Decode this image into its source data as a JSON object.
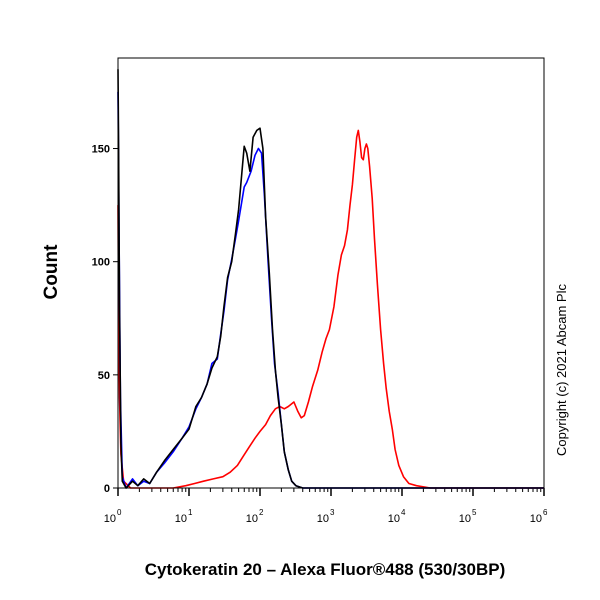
{
  "chart_data": {
    "type": "line",
    "xscale": "log",
    "xlim": [
      1,
      1000000
    ],
    "ylim": [
      0,
      190
    ],
    "xlabel": "Cytokeratin 20 – Alexa Fluor®488 (530/30BP)",
    "ylabel": "Count",
    "yticks": [
      0,
      50,
      100,
      150
    ],
    "xticks": [
      {
        "base": "10",
        "exp": "0"
      },
      {
        "base": "10",
        "exp": "1"
      },
      {
        "base": "10",
        "exp": "2"
      },
      {
        "base": "10",
        "exp": "3"
      },
      {
        "base": "10",
        "exp": "4"
      },
      {
        "base": "10",
        "exp": "5"
      },
      {
        "base": "10",
        "exp": "6"
      }
    ],
    "annotation": "Copyright (c) 2021 Abcam Plc",
    "series": [
      {
        "color": "#000000",
        "points": [
          [
            1,
            185
          ],
          [
            1.02,
            150
          ],
          [
            1.05,
            80
          ],
          [
            1.1,
            20
          ],
          [
            1.15,
            3
          ],
          [
            1.3,
            0
          ],
          [
            1.6,
            3
          ],
          [
            1.9,
            1
          ],
          [
            2.3,
            4
          ],
          [
            2.8,
            2
          ],
          [
            3.5,
            7
          ],
          [
            4.5,
            12
          ],
          [
            6,
            17
          ],
          [
            8,
            22
          ],
          [
            10,
            26
          ],
          [
            12.5,
            36
          ],
          [
            15,
            40
          ],
          [
            18,
            46
          ],
          [
            21,
            53
          ],
          [
            25,
            58
          ],
          [
            28,
            67
          ],
          [
            31,
            80
          ],
          [
            35,
            93
          ],
          [
            40,
            100
          ],
          [
            45,
            112
          ],
          [
            50,
            123
          ],
          [
            55,
            138
          ],
          [
            60,
            151
          ],
          [
            65,
            148
          ],
          [
            72,
            140
          ],
          [
            80,
            155
          ],
          [
            90,
            158
          ],
          [
            100,
            159
          ],
          [
            110,
            150
          ],
          [
            120,
            120
          ],
          [
            135,
            95
          ],
          [
            150,
            70
          ],
          [
            165,
            52
          ],
          [
            180,
            40
          ],
          [
            200,
            28
          ],
          [
            220,
            16
          ],
          [
            250,
            8
          ],
          [
            280,
            3
          ],
          [
            320,
            1
          ],
          [
            400,
            0
          ],
          [
            1000000,
            0
          ]
        ]
      },
      {
        "color": "#0000ff",
        "points": [
          [
            1,
            175
          ],
          [
            1.03,
            120
          ],
          [
            1.08,
            40
          ],
          [
            1.15,
            5
          ],
          [
            1.3,
            0
          ],
          [
            1.6,
            4
          ],
          [
            1.9,
            1
          ],
          [
            2.3,
            3
          ],
          [
            2.8,
            2
          ],
          [
            3.5,
            7
          ],
          [
            4.5,
            11
          ],
          [
            6,
            16
          ],
          [
            8,
            22
          ],
          [
            10,
            27
          ],
          [
            12.5,
            35
          ],
          [
            15,
            40
          ],
          [
            18,
            46
          ],
          [
            21,
            55
          ],
          [
            25,
            57
          ],
          [
            28,
            68
          ],
          [
            31,
            78
          ],
          [
            35,
            92
          ],
          [
            40,
            101
          ],
          [
            45,
            110
          ],
          [
            50,
            118
          ],
          [
            55,
            126
          ],
          [
            60,
            133
          ],
          [
            65,
            135
          ],
          [
            75,
            140
          ],
          [
            85,
            147
          ],
          [
            95,
            150
          ],
          [
            105,
            148
          ],
          [
            115,
            130
          ],
          [
            130,
            100
          ],
          [
            145,
            75
          ],
          [
            160,
            55
          ],
          [
            180,
            42
          ],
          [
            200,
            28
          ],
          [
            220,
            16
          ],
          [
            250,
            8
          ],
          [
            280,
            3
          ],
          [
            320,
            1
          ],
          [
            400,
            0
          ],
          [
            1000000,
            0
          ]
        ]
      },
      {
        "color": "#ff0000",
        "points": [
          [
            1,
            125
          ],
          [
            1.02,
            80
          ],
          [
            1.05,
            40
          ],
          [
            1.1,
            15
          ],
          [
            1.2,
            3
          ],
          [
            1.5,
            0
          ],
          [
            6,
            0
          ],
          [
            9,
            1
          ],
          [
            12,
            2
          ],
          [
            16,
            3
          ],
          [
            22,
            4
          ],
          [
            30,
            5
          ],
          [
            38,
            7
          ],
          [
            48,
            10
          ],
          [
            58,
            14
          ],
          [
            70,
            18
          ],
          [
            85,
            22
          ],
          [
            100,
            25
          ],
          [
            120,
            28
          ],
          [
            140,
            32
          ],
          [
            165,
            35
          ],
          [
            190,
            36
          ],
          [
            220,
            35
          ],
          [
            250,
            36
          ],
          [
            300,
            38
          ],
          [
            340,
            34
          ],
          [
            380,
            31
          ],
          [
            420,
            32
          ],
          [
            480,
            38
          ],
          [
            550,
            45
          ],
          [
            650,
            52
          ],
          [
            750,
            60
          ],
          [
            850,
            66
          ],
          [
            950,
            70
          ],
          [
            1100,
            80
          ],
          [
            1250,
            94
          ],
          [
            1400,
            103
          ],
          [
            1550,
            107
          ],
          [
            1700,
            114
          ],
          [
            1850,
            125
          ],
          [
            2000,
            134
          ],
          [
            2150,
            145
          ],
          [
            2300,
            155
          ],
          [
            2420,
            158
          ],
          [
            2550,
            153
          ],
          [
            2700,
            146
          ],
          [
            2850,
            145
          ],
          [
            3000,
            150
          ],
          [
            3150,
            152
          ],
          [
            3300,
            150
          ],
          [
            3500,
            142
          ],
          [
            3800,
            128
          ],
          [
            4100,
            110
          ],
          [
            4500,
            90
          ],
          [
            5000,
            70
          ],
          [
            5500,
            55
          ],
          [
            6000,
            44
          ],
          [
            6600,
            34
          ],
          [
            7300,
            26
          ],
          [
            8000,
            17
          ],
          [
            9000,
            10
          ],
          [
            10500,
            5
          ],
          [
            12500,
            2
          ],
          [
            16000,
            1
          ],
          [
            25000,
            0
          ],
          [
            1000000,
            0
          ]
        ]
      }
    ]
  }
}
